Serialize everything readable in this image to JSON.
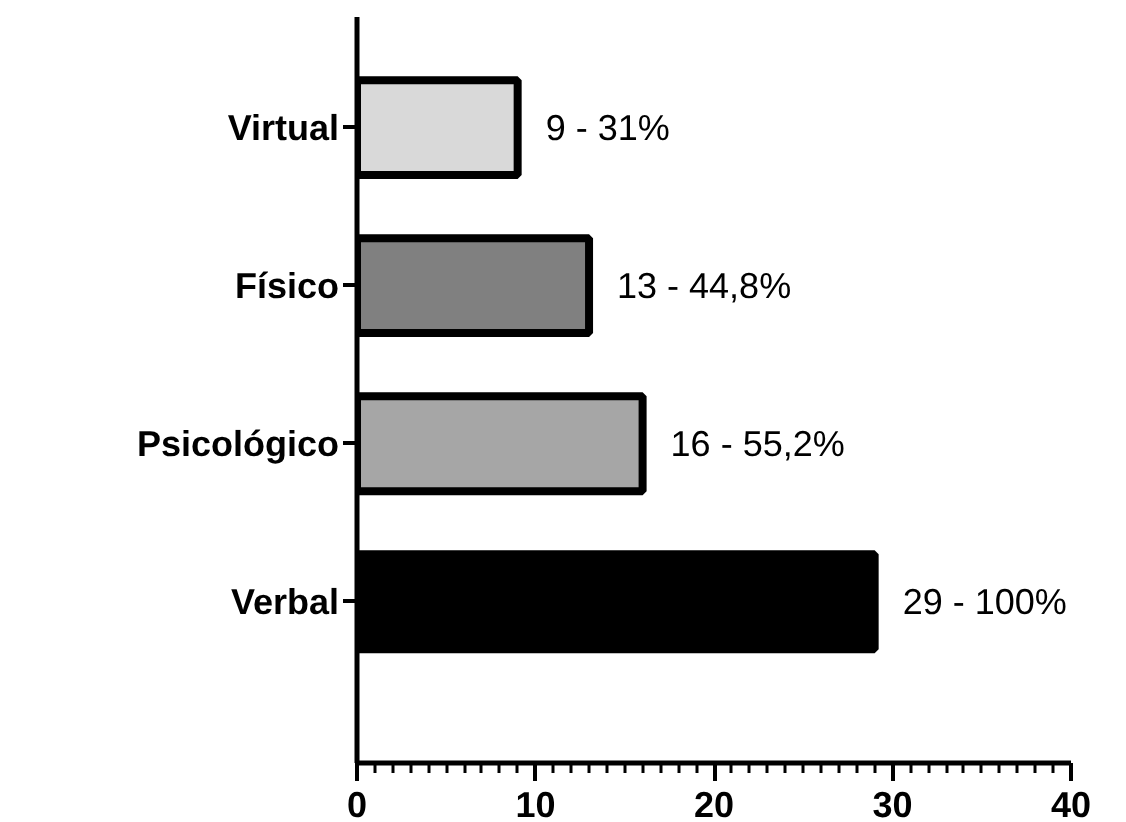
{
  "chart_data": {
    "type": "bar",
    "orientation": "horizontal",
    "categories": [
      "Virtual",
      "Físico",
      "Psicológico",
      "Verbal"
    ],
    "values": [
      9,
      13,
      16,
      29
    ],
    "colors": [
      "#d9d9d9",
      "#808080",
      "#a6a6a6",
      "#000000"
    ],
    "value_labels": [
      "9 - 31%",
      "13 - 44,8%",
      "16 - 55,2%",
      "29 - 100%"
    ],
    "xlim": [
      0,
      40
    ],
    "xticks": [
      0,
      10,
      20,
      30,
      40
    ],
    "grid": false
  }
}
